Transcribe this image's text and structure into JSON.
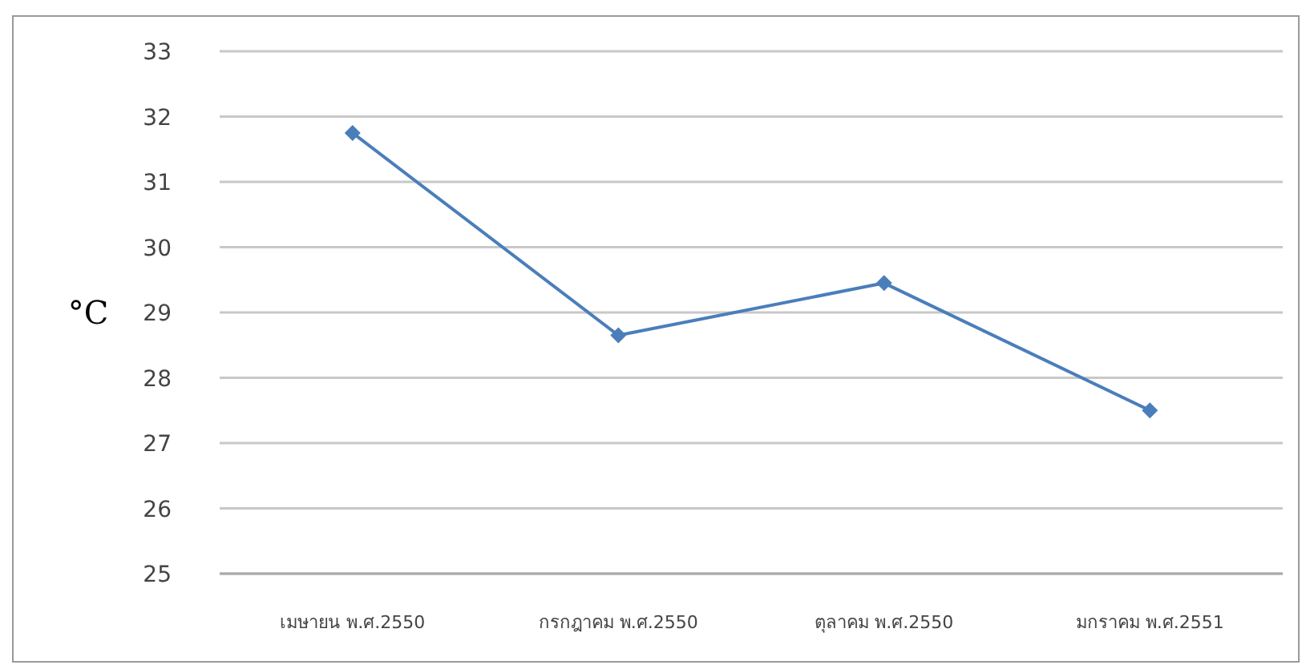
{
  "chart_data": {
    "type": "line",
    "ylabel": "°C",
    "categories": [
      "เมษายน พ.ศ.2550",
      "กรกฎาคม พ.ศ.2550",
      "ตุลาคม พ.ศ.2550",
      "มกราคม พ.ศ.2551"
    ],
    "series": [
      {
        "color": "#4a7ebb",
        "values": [
          31.75,
          28.65,
          29.45,
          27.5
        ]
      }
    ],
    "ylim": [
      25,
      33
    ],
    "yticks": [
      25,
      26,
      27,
      28,
      29,
      30,
      31,
      32,
      33
    ],
    "grid": "y",
    "marker": "diamond",
    "line_style": "solid"
  }
}
